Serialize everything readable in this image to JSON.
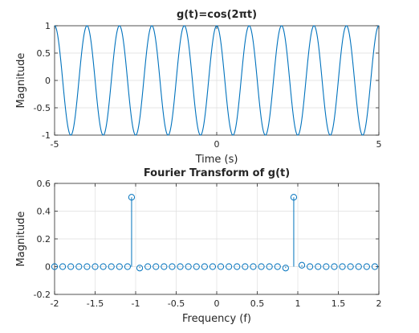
{
  "chart_data": [
    {
      "type": "line",
      "title": "g(t)=cos(2πt)",
      "xlabel": "Time (s)",
      "ylabel": "Magnitude",
      "xlim": [
        -5,
        5
      ],
      "ylim": [
        -1,
        1
      ],
      "xticks": [
        -5,
        0,
        5
      ],
      "xtick_labels": [
        "-5",
        "0",
        "5"
      ],
      "yticks": [
        -1,
        -0.5,
        0,
        0.5,
        1
      ],
      "ytick_labels": [
        "-1",
        "-0.5",
        "0",
        "0.5",
        "1"
      ],
      "grid": true,
      "series_color": "#0072bd",
      "frequency_hz": 1,
      "series": [
        {
          "x": [
            -5,
            -4.75,
            -4.5,
            -4.25,
            -4,
            -3.75,
            -3.5,
            -3.25,
            -3,
            -2.75,
            -2.5,
            -2.25,
            -2,
            -1.75,
            -1.5,
            -1.25,
            -1,
            -0.75,
            -0.5,
            -0.25,
            0,
            0.25,
            0.5,
            0.75,
            1,
            1.25,
            1.5,
            1.75,
            2,
            2.25,
            2.5,
            2.75,
            3,
            3.25,
            3.5,
            3.75,
            4,
            4.25,
            4.5,
            4.75,
            5
          ],
          "y": [
            1,
            0,
            -1,
            0,
            1,
            0,
            -1,
            0,
            1,
            0,
            -1,
            0,
            1,
            0,
            -1,
            0,
            1,
            0,
            -1,
            0,
            1,
            0,
            -1,
            0,
            1,
            0,
            -1,
            0,
            1,
            0,
            -1,
            0,
            1,
            0,
            -1,
            0,
            1,
            0,
            -1,
            0,
            1
          ]
        }
      ]
    },
    {
      "type": "stem",
      "title": "Fourier Transform of g(t)",
      "xlabel": "Frequency (f)",
      "ylabel": "Magnitude",
      "xlim": [
        -2,
        2
      ],
      "ylim": [
        -0.2,
        0.6
      ],
      "xticks": [
        -2,
        -1.5,
        -1,
        -0.5,
        0,
        0.5,
        1,
        1.5,
        2
      ],
      "xtick_labels": [
        "-2",
        "-1.5",
        "-1",
        "-0.5",
        "0",
        "0.5",
        "1",
        "1.5",
        "2"
      ],
      "yticks": [
        -0.2,
        0,
        0.2,
        0.4,
        0.6
      ],
      "ytick_labels": [
        "-0.2",
        "0",
        "0.2",
        "0.4",
        "0.6"
      ],
      "grid": true,
      "series_color": "#0072bd",
      "series": [
        {
          "x": [
            -2,
            -1.9,
            -1.8,
            -1.7,
            -1.6,
            -1.5,
            -1.4,
            -1.3,
            -1.2,
            -1.1,
            -1.05,
            -0.95,
            -0.85,
            -0.75,
            -0.65,
            -0.55,
            -0.45,
            -0.35,
            -0.25,
            -0.15,
            -0.05,
            0.05,
            0.15,
            0.25,
            0.35,
            0.45,
            0.55,
            0.65,
            0.75,
            0.85,
            0.95,
            1.05,
            1.15,
            1.25,
            1.35,
            1.45,
            1.55,
            1.65,
            1.75,
            1.85,
            1.95
          ],
          "y": [
            0,
            0,
            0,
            0,
            0,
            0,
            0,
            0,
            0,
            0,
            0.5,
            -0.01,
            0,
            0,
            0,
            0,
            0,
            0,
            0,
            0,
            0,
            0,
            0,
            0,
            0,
            0,
            0,
            0,
            0,
            -0.01,
            0.5,
            0.01,
            0,
            0,
            0,
            0,
            0,
            0,
            0,
            0,
            0
          ]
        }
      ]
    }
  ]
}
